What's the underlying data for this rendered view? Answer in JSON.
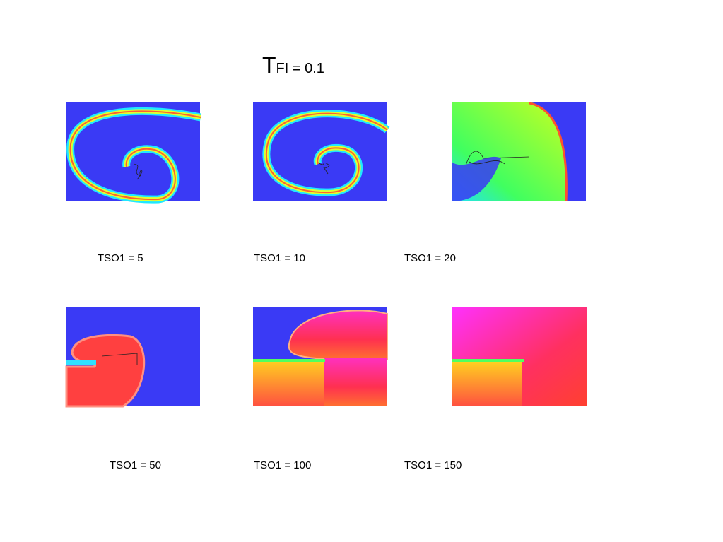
{
  "title": {
    "main": "T",
    "sub": "FI = 0.1"
  },
  "panels": [
    {
      "label": "TSO1 = 5"
    },
    {
      "label": "TSO1 = 10"
    },
    {
      "label": "TSO1 = 20"
    },
    {
      "label": "TSO1 = 50"
    },
    {
      "label": "TSO1 = 100"
    },
    {
      "label": "TSO1 = 150"
    }
  ]
}
